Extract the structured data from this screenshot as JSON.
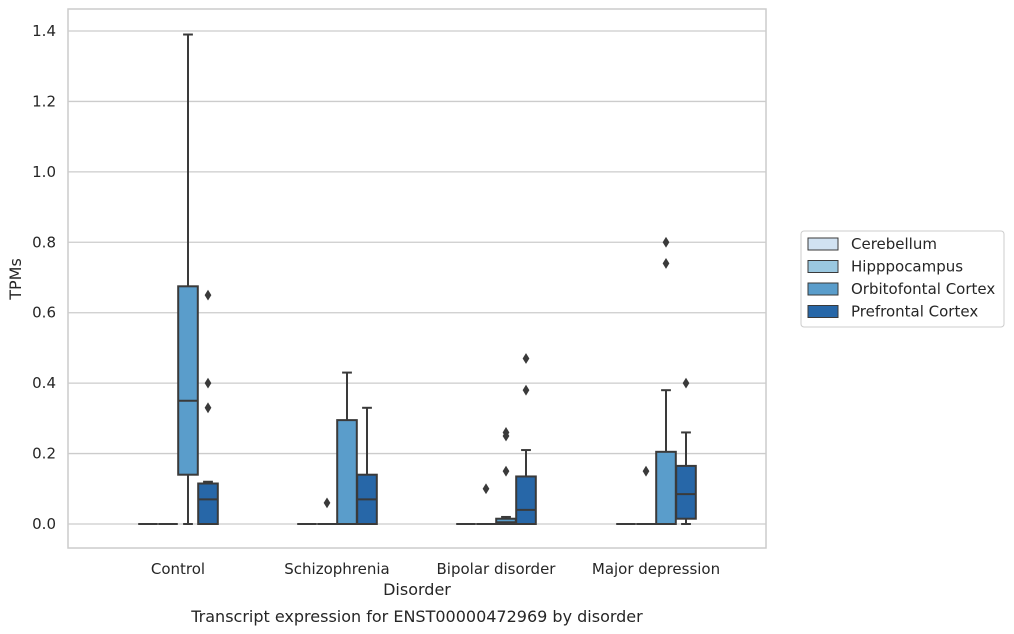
{
  "chart_data": {
    "type": "box",
    "title": "Transcript expression for ENST00000472969 by disorder",
    "xlabel": "Disorder",
    "ylabel": "TPMs",
    "ylim": [
      -0.07,
      1.46
    ],
    "yticks": [
      0.0,
      0.2,
      0.4,
      0.6,
      0.8,
      1.0,
      1.2,
      1.4
    ],
    "ytick_labels": [
      "0.0",
      "0.2",
      "0.4",
      "0.6",
      "0.8",
      "1.0",
      "1.2",
      "1.4"
    ],
    "grid": "horizontal",
    "legend_position": "right",
    "categories": [
      "Control",
      "Schizophrenia",
      "Bipolar disorder",
      "Major depression"
    ],
    "series": [
      {
        "name": "Cerebellum",
        "color": "#d1e2f2",
        "boxes": [
          {
            "whislo": 0,
            "q1": 0,
            "med": 0,
            "q3": 0,
            "whishi": 0,
            "fliers": []
          },
          {
            "whislo": 0,
            "q1": 0,
            "med": 0,
            "q3": 0,
            "whishi": 0,
            "fliers": []
          },
          {
            "whislo": 0,
            "q1": 0,
            "med": 0,
            "q3": 0,
            "whishi": 0,
            "fliers": []
          },
          {
            "whislo": 0,
            "q1": 0,
            "med": 0,
            "q3": 0,
            "whishi": 0,
            "fliers": []
          }
        ]
      },
      {
        "name": "Hipppocampus",
        "color": "#9ac8e0",
        "boxes": [
          {
            "whislo": 0,
            "q1": 0,
            "med": 0,
            "q3": 0,
            "whishi": 0,
            "fliers": []
          },
          {
            "whislo": 0,
            "q1": 0,
            "med": 0,
            "q3": 0,
            "whishi": 0,
            "fliers": [
              0.06
            ]
          },
          {
            "whislo": 0,
            "q1": 0,
            "med": 0,
            "q3": 0,
            "whishi": 0,
            "fliers": [
              0.1
            ]
          },
          {
            "whislo": 0,
            "q1": 0,
            "med": 0,
            "q3": 0,
            "whishi": 0,
            "fliers": [
              0.15
            ]
          }
        ]
      },
      {
        "name": "Orbitofontal Cortex",
        "color": "#5a9dcb",
        "boxes": [
          {
            "whislo": 0,
            "q1": 0.14,
            "med": 0.35,
            "q3": 0.675,
            "whishi": 1.39,
            "fliers": []
          },
          {
            "whislo": 0,
            "q1": 0,
            "med": 0,
            "q3": 0.295,
            "whishi": 0.43,
            "fliers": []
          },
          {
            "whislo": 0,
            "q1": 0,
            "med": 0.005,
            "q3": 0.015,
            "whishi": 0.02,
            "fliers": [
              0.25,
              0.26,
              0.15
            ]
          },
          {
            "whislo": 0,
            "q1": 0,
            "med": 0,
            "q3": 0.205,
            "whishi": 0.38,
            "fliers": [
              0.74,
              0.8
            ]
          }
        ]
      },
      {
        "name": "Prefrontal Cortex",
        "color": "#2767a8",
        "boxes": [
          {
            "whislo": 0,
            "q1": 0,
            "med": 0.07,
            "q3": 0.115,
            "whishi": 0.12,
            "fliers": [
              0.33,
              0.4,
              0.65
            ]
          },
          {
            "whislo": 0,
            "q1": 0,
            "med": 0.07,
            "q3": 0.14,
            "whishi": 0.33,
            "fliers": []
          },
          {
            "whislo": 0,
            "q1": 0,
            "med": 0.04,
            "q3": 0.135,
            "whishi": 0.21,
            "fliers": [
              0.38,
              0.47
            ]
          },
          {
            "whislo": 0,
            "q1": 0.015,
            "med": 0.085,
            "q3": 0.165,
            "whishi": 0.26,
            "fliers": [
              0.4
            ]
          }
        ]
      }
    ]
  }
}
